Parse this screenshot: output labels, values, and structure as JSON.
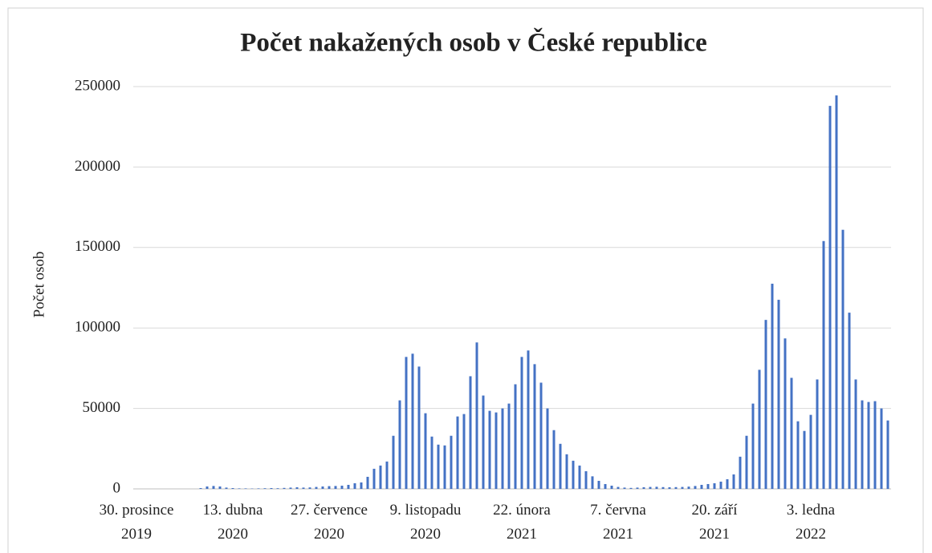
{
  "chart_data": {
    "type": "bar",
    "title": "Počet nakažených osob v České republice",
    "y_label": "Počet osob",
    "categories": [
      "30. prosince\n2019",
      null,
      null,
      null,
      null,
      null,
      null,
      null,
      null,
      null,
      null,
      null,
      null,
      null,
      null,
      "13. dubna\n2020",
      null,
      null,
      null,
      null,
      null,
      null,
      null,
      null,
      null,
      null,
      null,
      null,
      null,
      null,
      "27. července\n2020",
      null,
      null,
      null,
      null,
      null,
      null,
      null,
      null,
      null,
      null,
      null,
      null,
      null,
      null,
      "9. listopadu\n2020",
      null,
      null,
      null,
      null,
      null,
      null,
      null,
      null,
      null,
      null,
      null,
      null,
      null,
      null,
      "22. února\n2021",
      null,
      null,
      null,
      null,
      null,
      null,
      null,
      null,
      null,
      null,
      null,
      null,
      null,
      null,
      "7. června\n2021",
      null,
      null,
      null,
      null,
      null,
      null,
      null,
      null,
      null,
      null,
      null,
      null,
      null,
      null,
      "20. září\n2021",
      null,
      null,
      null,
      null,
      null,
      null,
      null,
      null,
      null,
      null,
      null,
      null,
      null,
      null,
      "3. ledna\n2022",
      null,
      null,
      null,
      null,
      null,
      null,
      null,
      null,
      null,
      null,
      null,
      null
    ],
    "values": [
      0,
      0,
      0,
      0,
      0,
      0,
      0,
      0,
      0,
      0,
      500,
      1500,
      1800,
      1500,
      800,
      500,
      300,
      300,
      200,
      300,
      400,
      500,
      400,
      600,
      800,
      1000,
      800,
      900,
      1200,
      1500,
      1700,
      1800,
      2000,
      2500,
      3500,
      4000,
      7500,
      12500,
      14500,
      17000,
      33000,
      55000,
      82000,
      84000,
      76000,
      47000,
      32500,
      27500,
      27000,
      33000,
      45000,
      46500,
      70000,
      91000,
      58000,
      48500,
      47500,
      50000,
      53000,
      65000,
      82000,
      86000,
      77500,
      66000,
      50000,
      36500,
      28000,
      21500,
      17500,
      14500,
      11000,
      7800,
      5000,
      3000,
      2000,
      1200,
      800,
      600,
      800,
      1000,
      1200,
      1300,
      1100,
      1000,
      1100,
      1200,
      1400,
      1800,
      2500,
      3000,
      3500,
      4500,
      6000,
      9000,
      20000,
      33000,
      53000,
      74000,
      105000,
      127500,
      117500,
      93500,
      69000,
      42000,
      36000,
      46000,
      68000,
      154000,
      238000,
      244500,
      161000,
      109500,
      68000,
      55000,
      54000,
      54500,
      50000,
      42500
    ],
    "color": "#4472c4",
    "ylim": [
      0,
      250000
    ],
    "yticks": [
      0,
      50000,
      100000,
      150000,
      200000,
      250000
    ],
    "grid": true
  }
}
